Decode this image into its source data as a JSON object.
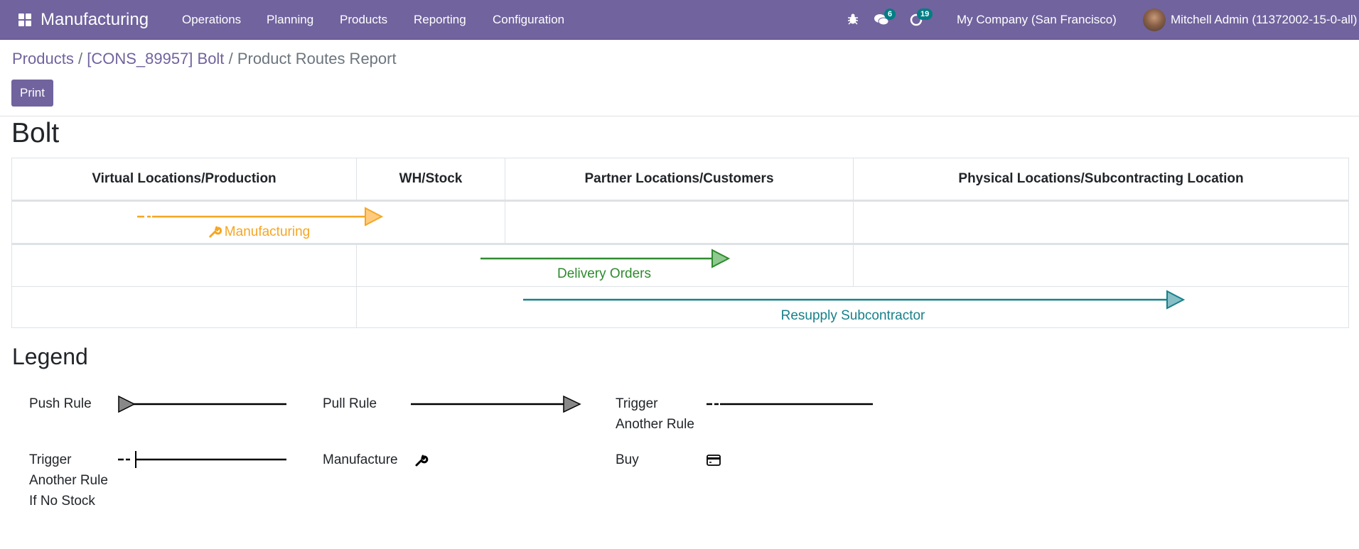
{
  "navbar": {
    "app_name": "Manufacturing",
    "menu": [
      "Operations",
      "Planning",
      "Products",
      "Reporting",
      "Configuration"
    ],
    "messages_count": "6",
    "activities_count": "19",
    "company": "My Company (San Francisco)",
    "user": "Mitchell Admin (11372002-15-0-all)",
    "icons": [
      "apps-grid-icon",
      "bug-icon",
      "chat-icon",
      "clock-icon"
    ],
    "color": "#71639e"
  },
  "breadcrumb": {
    "items": [
      "Products",
      "[CONS_89957] Bolt"
    ],
    "current": "Product Routes Report",
    "separator": "/"
  },
  "actions": {
    "print_label": "Print"
  },
  "report": {
    "title": "Bolt",
    "columns": [
      "Virtual Locations/Production",
      "WH/Stock",
      "Partner Locations/Customers",
      "Physical Locations/Subcontracting Location"
    ],
    "routes": [
      {
        "label": "Manufacturing",
        "from": "Virtual Locations/Production",
        "to": "WH/Stock",
        "type": "pull",
        "trigger": "trigger another rule",
        "icon": "wrench-icon",
        "color": "#f5a623"
      },
      {
        "label": "Delivery Orders",
        "from": "WH/Stock",
        "to": "Partner Locations/Customers",
        "type": "pull",
        "color": "#2e8b2e"
      },
      {
        "label": "Resupply Subcontractor",
        "from": "WH/Stock",
        "to": "Physical Locations/Subcontracting Location",
        "type": "pull",
        "color": "#17808a"
      }
    ]
  },
  "legend": {
    "title": "Legend",
    "items": [
      {
        "label": "Push Rule",
        "symbol": "push-arrow"
      },
      {
        "label": "Pull Rule",
        "symbol": "pull-arrow"
      },
      {
        "label": "Trigger Another Rule",
        "lines": [
          "Trigger",
          "Another Rule"
        ],
        "symbol": "dashed-line"
      },
      {
        "label": "Trigger Another Rule If No Stock",
        "lines": [
          "Trigger",
          "Another Rule",
          "If No Stock"
        ],
        "symbol": "dashed-bar-line"
      },
      {
        "label": "Manufacture",
        "symbol": "wrench-icon"
      },
      {
        "label": "Buy",
        "symbol": "credit-card-icon"
      }
    ]
  }
}
